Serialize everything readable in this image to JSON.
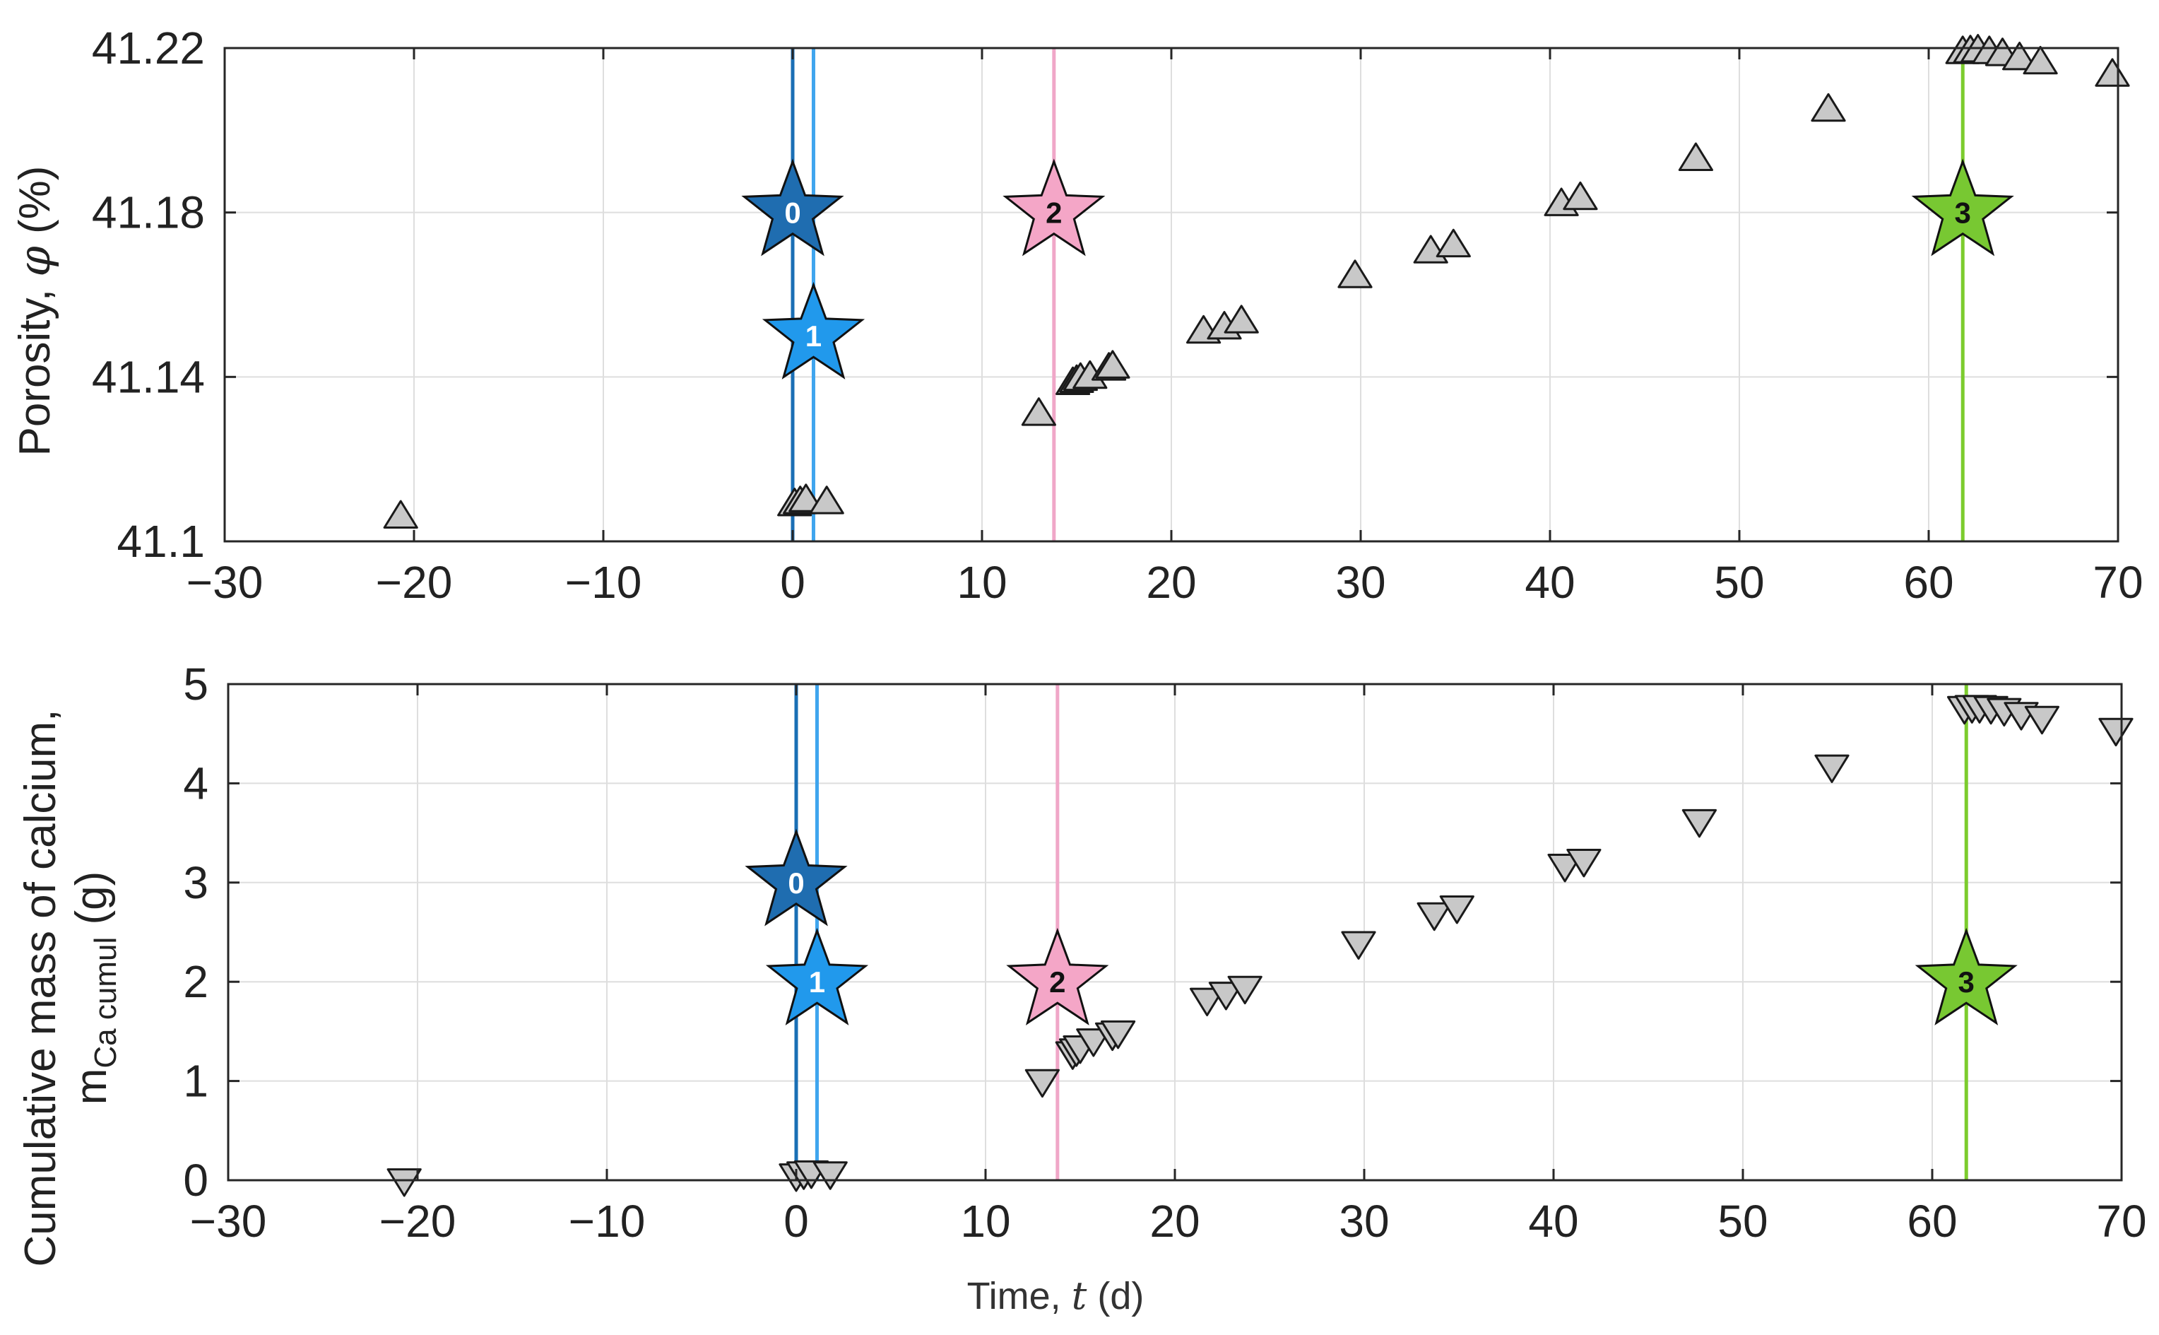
{
  "chart_data": [
    {
      "type": "scatter",
      "ylabel_text": "Porosity, ",
      "ylabel_symbol": "φ",
      "ylabel_unit": " (%)",
      "xlabel": "",
      "xlim": [
        -30,
        70
      ],
      "ylim": [
        41.1,
        41.22
      ],
      "xticks": [
        -30,
        -20,
        -10,
        0,
        10,
        20,
        30,
        40,
        50,
        60,
        70
      ],
      "xtick_labels": [
        "−30",
        "−20",
        "−10",
        "0",
        "10",
        "20",
        "30",
        "40",
        "50",
        "60",
        "70"
      ],
      "yticks": [
        41.1,
        41.14,
        41.18,
        41.22
      ],
      "ytick_labels": [
        "41.1",
        "41.14",
        "41.18",
        "41.22"
      ],
      "grid": true,
      "marker": "triangle-up",
      "marker_color": "#c8c8c8",
      "points": [
        {
          "x": -20.7,
          "y": 41.106
        },
        {
          "x": 0.1,
          "y": 41.109
        },
        {
          "x": 0.4,
          "y": 41.1095
        },
        {
          "x": 0.7,
          "y": 41.11
        },
        {
          "x": 1.8,
          "y": 41.1095
        },
        {
          "x": 13.0,
          "y": 41.131
        },
        {
          "x": 14.8,
          "y": 41.1385
        },
        {
          "x": 15.0,
          "y": 41.139
        },
        {
          "x": 15.2,
          "y": 41.1395
        },
        {
          "x": 15.7,
          "y": 41.14
        },
        {
          "x": 16.7,
          "y": 41.142
        },
        {
          "x": 16.9,
          "y": 41.1425
        },
        {
          "x": 21.7,
          "y": 41.151
        },
        {
          "x": 22.8,
          "y": 41.152
        },
        {
          "x": 23.7,
          "y": 41.1535
        },
        {
          "x": 29.7,
          "y": 41.1645
        },
        {
          "x": 33.7,
          "y": 41.1705
        },
        {
          "x": 34.9,
          "y": 41.172
        },
        {
          "x": 40.6,
          "y": 41.182
        },
        {
          "x": 41.6,
          "y": 41.1835
        },
        {
          "x": 47.7,
          "y": 41.193
        },
        {
          "x": 54.7,
          "y": 41.205
        },
        {
          "x": 61.8,
          "y": 41.219
        },
        {
          "x": 62.2,
          "y": 41.2192
        },
        {
          "x": 62.6,
          "y": 41.2194
        },
        {
          "x": 63.2,
          "y": 41.219
        },
        {
          "x": 63.9,
          "y": 41.2185
        },
        {
          "x": 64.8,
          "y": 41.2175
        },
        {
          "x": 65.9,
          "y": 41.2165
        },
        {
          "x": 69.7,
          "y": 41.2135
        }
      ],
      "vlines": [
        {
          "x": 0.0,
          "color": "#1a6fb5"
        },
        {
          "x": 1.1,
          "color": "#3fa5ee"
        },
        {
          "x": 13.8,
          "color": "#f0a7c8"
        },
        {
          "x": 61.8,
          "color": "#7ccc2e"
        }
      ],
      "stars": [
        {
          "label": "0",
          "x": 0.0,
          "y": 41.18,
          "color": "#1f6db0",
          "text_color": "#ffffff"
        },
        {
          "label": "1",
          "x": 1.1,
          "y": 41.15,
          "color": "#2199ec",
          "text_color": "#ffffff"
        },
        {
          "label": "2",
          "x": 13.8,
          "y": 41.18,
          "color": "#f4a6c7",
          "text_color": "#111111"
        },
        {
          "label": "3",
          "x": 61.8,
          "y": 41.18,
          "color": "#78c832",
          "text_color": "#111111"
        }
      ]
    },
    {
      "type": "scatter",
      "ylabel_line1": "Cumulative mass of calcium,",
      "ylabel_main": "m",
      "ylabel_sub": "Ca cumul",
      "ylabel_unit": " (g)",
      "xlabel_text": "Time, ",
      "xlabel_symbol": "t",
      "xlabel_unit": " (d)",
      "xlim": [
        -30,
        70
      ],
      "ylim": [
        0,
        5
      ],
      "xticks": [
        -30,
        -20,
        -10,
        0,
        10,
        20,
        30,
        40,
        50,
        60,
        70
      ],
      "xtick_labels": [
        "−30",
        "−20",
        "−10",
        "0",
        "10",
        "20",
        "30",
        "40",
        "50",
        "60",
        "70"
      ],
      "yticks": [
        0,
        1,
        2,
        3,
        4,
        5
      ],
      "ytick_labels": [
        "0",
        "1",
        "2",
        "3",
        "4",
        "5"
      ],
      "grid": true,
      "marker": "triangle-down",
      "marker_color": "#c8c8c8",
      "points": [
        {
          "x": -20.7,
          "y": 0.0
        },
        {
          "x": 0.0,
          "y": 0.05
        },
        {
          "x": 0.4,
          "y": 0.07
        },
        {
          "x": 0.8,
          "y": 0.08
        },
        {
          "x": 1.8,
          "y": 0.07
        },
        {
          "x": 13.0,
          "y": 1.0
        },
        {
          "x": 14.6,
          "y": 1.28
        },
        {
          "x": 14.8,
          "y": 1.31
        },
        {
          "x": 15.0,
          "y": 1.34
        },
        {
          "x": 15.7,
          "y": 1.41
        },
        {
          "x": 16.7,
          "y": 1.47
        },
        {
          "x": 17.0,
          "y": 1.49
        },
        {
          "x": 21.7,
          "y": 1.82
        },
        {
          "x": 22.7,
          "y": 1.88
        },
        {
          "x": 23.7,
          "y": 1.94
        },
        {
          "x": 29.7,
          "y": 2.39
        },
        {
          "x": 33.7,
          "y": 2.68
        },
        {
          "x": 34.9,
          "y": 2.75
        },
        {
          "x": 40.6,
          "y": 3.17
        },
        {
          "x": 41.6,
          "y": 3.22
        },
        {
          "x": 47.7,
          "y": 3.62
        },
        {
          "x": 54.7,
          "y": 4.17
        },
        {
          "x": 61.7,
          "y": 4.76
        },
        {
          "x": 62.1,
          "y": 4.77
        },
        {
          "x": 62.5,
          "y": 4.77
        },
        {
          "x": 63.1,
          "y": 4.76
        },
        {
          "x": 63.8,
          "y": 4.74
        },
        {
          "x": 64.7,
          "y": 4.7
        },
        {
          "x": 65.8,
          "y": 4.66
        },
        {
          "x": 69.7,
          "y": 4.54
        }
      ],
      "vlines": [
        {
          "x": 0.0,
          "color": "#1a6fb5"
        },
        {
          "x": 1.1,
          "color": "#3fa5ee"
        },
        {
          "x": 13.8,
          "color": "#f0a7c8"
        },
        {
          "x": 61.8,
          "color": "#7ccc2e"
        }
      ],
      "stars": [
        {
          "label": "0",
          "x": 0.0,
          "y": 3.0,
          "color": "#1f6db0",
          "text_color": "#ffffff"
        },
        {
          "label": "1",
          "x": 1.1,
          "y": 2.0,
          "color": "#2199ec",
          "text_color": "#ffffff"
        },
        {
          "label": "2",
          "x": 13.8,
          "y": 2.0,
          "color": "#f4a6c7",
          "text_color": "#111111"
        },
        {
          "label": "3",
          "x": 61.8,
          "y": 2.0,
          "color": "#78c832",
          "text_color": "#111111"
        }
      ]
    }
  ]
}
